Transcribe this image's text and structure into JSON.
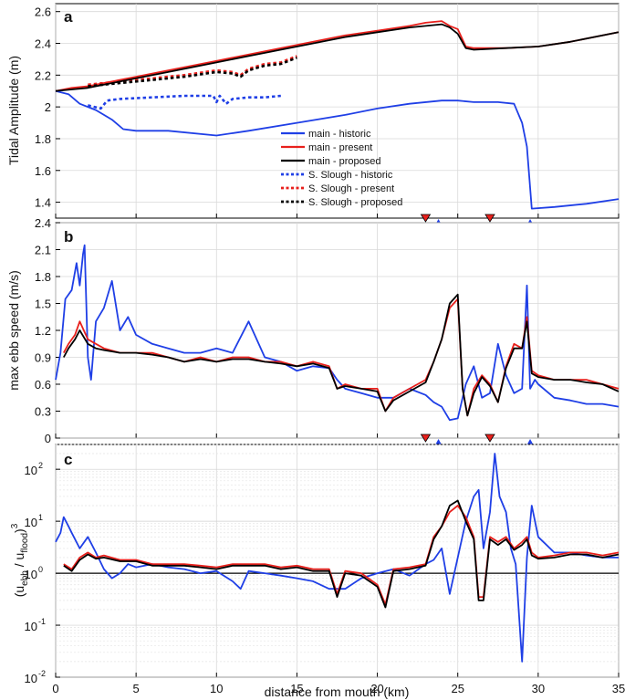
{
  "figure": {
    "xlabel": "distance from mouth (km)",
    "xticks": [
      0,
      5,
      10,
      15,
      20,
      25,
      30,
      35
    ],
    "markers": {
      "red_down": [
        23.0,
        27.0
      ],
      "blue_up": [
        23.8,
        29.5
      ],
      "red_color": "#e8201c",
      "blue_color": "#1f3fe6"
    }
  },
  "colors": {
    "historic": "#1f3fe6",
    "present": "#e8201c",
    "proposed": "#000000"
  },
  "chart_data": [
    {
      "panel": "a",
      "type": "line",
      "ylabel": "Tidal Amplitude (m)",
      "xlim": [
        0,
        35
      ],
      "ylim": [
        1.3,
        2.65
      ],
      "yticks": [
        "1.4",
        "1.6",
        "1.8",
        "2",
        "2.2",
        "2.4",
        "2.6"
      ],
      "grid": true,
      "legend_position": "center",
      "series": [
        {
          "name": "main - historic",
          "style": "solid",
          "color": "#1f3fe6",
          "x": [
            0,
            0.8,
            1.5,
            2.5,
            3.5,
            4.2,
            5,
            7,
            10,
            12,
            15,
            18,
            20,
            22,
            24,
            25,
            26,
            27.5,
            28.5,
            29,
            29.3,
            29.6,
            31,
            33,
            35
          ],
          "y": [
            2.1,
            2.08,
            2.02,
            1.98,
            1.92,
            1.86,
            1.85,
            1.85,
            1.82,
            1.85,
            1.9,
            1.95,
            1.99,
            2.02,
            2.04,
            2.04,
            2.03,
            2.03,
            2.02,
            1.9,
            1.75,
            1.36,
            1.37,
            1.39,
            1.42
          ]
        },
        {
          "name": "main - present",
          "style": "solid",
          "color": "#e8201c",
          "x": [
            0,
            1,
            2,
            3,
            5,
            7,
            10,
            12,
            15,
            18,
            20,
            22,
            23,
            24,
            24.5,
            25,
            25.5,
            26,
            28,
            30,
            32,
            35
          ],
          "y": [
            2.1,
            2.12,
            2.13,
            2.15,
            2.19,
            2.23,
            2.29,
            2.33,
            2.39,
            2.45,
            2.48,
            2.51,
            2.53,
            2.54,
            2.51,
            2.49,
            2.38,
            2.37,
            2.37,
            2.38,
            2.41,
            2.47
          ]
        },
        {
          "name": "main - proposed",
          "style": "solid",
          "color": "#000000",
          "x": [
            0,
            1,
            2,
            3,
            5,
            7,
            10,
            12,
            15,
            18,
            20,
            22,
            23,
            24,
            24.5,
            25,
            25.5,
            26,
            28,
            30,
            32,
            35
          ],
          "y": [
            2.1,
            2.11,
            2.12,
            2.14,
            2.18,
            2.22,
            2.28,
            2.32,
            2.38,
            2.44,
            2.47,
            2.5,
            2.51,
            2.52,
            2.5,
            2.46,
            2.37,
            2.36,
            2.37,
            2.38,
            2.41,
            2.47
          ]
        },
        {
          "name": "S. Slough - historic",
          "style": "dotted",
          "color": "#1f3fe6",
          "x": [
            2.0,
            2.8,
            3.2,
            4.0,
            6,
            8,
            9.8,
            10,
            10.2,
            10.6,
            11,
            12,
            13,
            14
          ],
          "y": [
            2.01,
            1.99,
            2.04,
            2.05,
            2.06,
            2.07,
            2.07,
            2.03,
            2.07,
            2.02,
            2.05,
            2.06,
            2.06,
            2.07
          ]
        },
        {
          "name": "S. Slough - present",
          "style": "dotted",
          "color": "#e8201c",
          "x": [
            2.0,
            3,
            4,
            6,
            8,
            10,
            11,
            11.5,
            12,
            13,
            14,
            15
          ],
          "y": [
            2.14,
            2.15,
            2.16,
            2.18,
            2.2,
            2.23,
            2.22,
            2.2,
            2.24,
            2.27,
            2.28,
            2.32
          ]
        },
        {
          "name": "S. Slough - proposed",
          "style": "dotted",
          "color": "#000000",
          "x": [
            2.0,
            3,
            4,
            6,
            8,
            10,
            11,
            11.5,
            12,
            13,
            14,
            15
          ],
          "y": [
            2.13,
            2.14,
            2.15,
            2.17,
            2.19,
            2.22,
            2.21,
            2.19,
            2.23,
            2.26,
            2.27,
            2.31
          ]
        }
      ]
    },
    {
      "panel": "b",
      "type": "line",
      "ylabel": "max ebb speed (m/s)",
      "xlim": [
        0,
        35
      ],
      "ylim": [
        0,
        2.4
      ],
      "yticks": [
        "0",
        "0.3",
        "0.6",
        "0.9",
        "1.2",
        "1.5",
        "1.8",
        "2.1",
        "2.4"
      ],
      "grid": true,
      "series": [
        {
          "name": "main - historic",
          "color": "#1f3fe6",
          "x": [
            0,
            0.3,
            0.6,
            1.0,
            1.3,
            1.5,
            1.7,
            1.8,
            2.0,
            2.2,
            2.5,
            3.0,
            3.5,
            4.0,
            4.5,
            5,
            6,
            7,
            8,
            9,
            10,
            11,
            12,
            13,
            14,
            15,
            16,
            17,
            17.5,
            18,
            19,
            20,
            21,
            22,
            23,
            23.5,
            24,
            24.5,
            25,
            25.5,
            26,
            26.5,
            27,
            27.5,
            28,
            28.5,
            29,
            29.3,
            29.5,
            29.8,
            30,
            31,
            32,
            33,
            34,
            35
          ],
          "y": [
            0.65,
            0.95,
            1.55,
            1.65,
            1.95,
            1.7,
            2.05,
            2.15,
            0.9,
            0.65,
            1.3,
            1.45,
            1.75,
            1.2,
            1.35,
            1.15,
            1.05,
            1.0,
            0.95,
            0.95,
            1.0,
            0.95,
            1.3,
            0.9,
            0.85,
            0.75,
            0.8,
            0.78,
            0.65,
            0.55,
            0.5,
            0.45,
            0.45,
            0.55,
            0.48,
            0.4,
            0.35,
            0.2,
            0.22,
            0.6,
            0.8,
            0.45,
            0.5,
            1.05,
            0.7,
            0.5,
            0.55,
            1.7,
            0.55,
            0.65,
            0.6,
            0.45,
            0.42,
            0.38,
            0.38,
            0.35
          ]
        },
        {
          "name": "main - present",
          "color": "#e8201c",
          "x": [
            0.5,
            0.8,
            1.2,
            1.5,
            2.0,
            2.5,
            3,
            4,
            5,
            6,
            7,
            8,
            9,
            10,
            11,
            12,
            13,
            14,
            15,
            16,
            17,
            17.5,
            18,
            19,
            20,
            20.5,
            21,
            22,
            23,
            23.5,
            24,
            24.5,
            25,
            25.3,
            25.6,
            26,
            26.5,
            27,
            27.5,
            28,
            28.5,
            29,
            29.3,
            29.6,
            30,
            31,
            32,
            33,
            34,
            35
          ],
          "y": [
            0.95,
            1.05,
            1.15,
            1.3,
            1.1,
            1.05,
            1.0,
            0.95,
            0.95,
            0.95,
            0.9,
            0.85,
            0.9,
            0.85,
            0.9,
            0.9,
            0.85,
            0.85,
            0.8,
            0.85,
            0.8,
            0.55,
            0.6,
            0.55,
            0.55,
            0.3,
            0.45,
            0.55,
            0.65,
            0.85,
            1.1,
            1.45,
            1.55,
            0.55,
            0.25,
            0.55,
            0.7,
            0.6,
            0.4,
            0.8,
            1.05,
            1.0,
            1.35,
            0.75,
            0.7,
            0.65,
            0.65,
            0.65,
            0.6,
            0.55
          ]
        },
        {
          "name": "main - proposed",
          "color": "#000000",
          "x": [
            0.5,
            0.8,
            1.2,
            1.5,
            2.0,
            2.5,
            3,
            4,
            5,
            6,
            7,
            8,
            9,
            10,
            11,
            12,
            13,
            14,
            15,
            16,
            17,
            17.5,
            18,
            19,
            20,
            20.5,
            21,
            22,
            23,
            23.5,
            24,
            24.5,
            25,
            25.3,
            25.6,
            26,
            26.5,
            27,
            27.5,
            28,
            28.5,
            29,
            29.3,
            29.6,
            30,
            31,
            32,
            33,
            34,
            35
          ],
          "y": [
            0.9,
            1.0,
            1.1,
            1.2,
            1.05,
            1.0,
            0.98,
            0.95,
            0.95,
            0.93,
            0.9,
            0.85,
            0.88,
            0.85,
            0.88,
            0.88,
            0.85,
            0.83,
            0.8,
            0.83,
            0.78,
            0.55,
            0.58,
            0.55,
            0.52,
            0.3,
            0.42,
            0.52,
            0.62,
            0.85,
            1.1,
            1.5,
            1.6,
            0.55,
            0.25,
            0.5,
            0.68,
            0.58,
            0.4,
            0.78,
            1.0,
            1.0,
            1.3,
            0.72,
            0.68,
            0.65,
            0.65,
            0.62,
            0.6,
            0.52
          ]
        }
      ]
    },
    {
      "panel": "c",
      "type": "line",
      "ylabel": "(u_ebb / u_flood)^3",
      "ylabel_parts": [
        "(u",
        "ebb",
        " / u",
        "flood",
        ")",
        "3"
      ],
      "xlim": [
        0,
        35
      ],
      "ylim": [
        0.01,
        300
      ],
      "yscale": "log",
      "yticks": [
        {
          "base": "10",
          "exp": "-2"
        },
        {
          "base": "10",
          "exp": "-1"
        },
        {
          "base": "10",
          "exp": "0"
        },
        {
          "base": "10",
          "exp": "1"
        },
        {
          "base": "10",
          "exp": "2"
        }
      ],
      "reference_line": 1,
      "grid": true,
      "series": [
        {
          "name": "main - historic",
          "color": "#1f3fe6",
          "x": [
            0,
            0.3,
            0.5,
            0.8,
            1.0,
            1.5,
            2.0,
            2.5,
            3,
            3.5,
            4,
            4.5,
            5,
            6,
            7,
            8,
            9,
            10,
            11,
            11.5,
            12,
            13,
            14,
            15,
            16,
            17,
            18,
            19,
            20,
            21,
            22,
            23,
            23.5,
            24,
            24.5,
            25,
            25.5,
            26,
            26.3,
            26.6,
            27,
            27.3,
            27.6,
            28,
            28.3,
            28.6,
            29,
            29.3,
            29.6,
            30,
            31,
            32,
            33,
            34,
            35
          ],
          "y": [
            4,
            6,
            12,
            8,
            6,
            3,
            5,
            2.5,
            1.2,
            0.8,
            1.0,
            1.5,
            1.3,
            1.5,
            1.3,
            1.2,
            1.0,
            1.1,
            0.7,
            0.5,
            1.1,
            1.0,
            0.9,
            0.8,
            0.7,
            0.5,
            0.5,
            0.8,
            1.0,
            1.2,
            0.9,
            1.5,
            1.8,
            3,
            0.4,
            2,
            10,
            30,
            40,
            3,
            15,
            200,
            30,
            15,
            3,
            1.5,
            0.02,
            2,
            20,
            5,
            2.5,
            2.5,
            2.2,
            2,
            2
          ]
        },
        {
          "name": "main - present",
          "color": "#e8201c",
          "x": [
            0.5,
            1,
            1.5,
            2,
            2.5,
            3,
            4,
            5,
            6,
            7,
            8,
            9,
            10,
            11,
            12,
            13,
            14,
            15,
            16,
            17,
            17.5,
            18,
            19,
            20,
            20.5,
            21,
            22,
            23,
            23.5,
            24,
            24.5,
            25,
            25.5,
            26,
            26.3,
            26.6,
            27,
            27.5,
            28,
            28.5,
            29,
            29.3,
            29.6,
            30,
            31,
            32,
            33,
            34,
            35
          ],
          "y": [
            1.5,
            1.2,
            2.0,
            2.5,
            2.0,
            2.2,
            1.8,
            1.8,
            1.5,
            1.5,
            1.5,
            1.4,
            1.3,
            1.5,
            1.5,
            1.5,
            1.3,
            1.4,
            1.2,
            1.2,
            0.4,
            1.1,
            1.0,
            0.6,
            0.25,
            1.2,
            1.3,
            1.5,
            5,
            8,
            15,
            20,
            12,
            5,
            0.35,
            0.35,
            5,
            4,
            5,
            3,
            4,
            5,
            2.5,
            2,
            2.2,
            2.5,
            2.5,
            2.2,
            2.5
          ]
        },
        {
          "name": "main - proposed",
          "color": "#000000",
          "x": [
            0.5,
            1,
            1.5,
            2,
            2.5,
            3,
            4,
            5,
            6,
            7,
            8,
            9,
            10,
            11,
            12,
            13,
            14,
            15,
            16,
            17,
            17.5,
            18,
            19,
            20,
            20.5,
            21,
            22,
            23,
            23.5,
            24,
            24.5,
            25,
            25.5,
            26,
            26.3,
            26.6,
            27,
            27.5,
            28,
            28.5,
            29,
            29.3,
            29.6,
            30,
            31,
            32,
            33,
            34,
            35
          ],
          "y": [
            1.4,
            1.1,
            1.8,
            2.3,
            1.9,
            2.0,
            1.7,
            1.7,
            1.4,
            1.4,
            1.4,
            1.3,
            1.2,
            1.4,
            1.4,
            1.4,
            1.2,
            1.3,
            1.1,
            1.1,
            0.35,
            1.0,
            0.9,
            0.55,
            0.22,
            1.1,
            1.2,
            1.4,
            4.5,
            8,
            20,
            25,
            10,
            4.5,
            0.3,
            0.3,
            4.5,
            3.5,
            4.5,
            2.8,
            3.5,
            4.5,
            2.2,
            1.9,
            2.0,
            2.3,
            2.3,
            2.0,
            2.3
          ]
        }
      ]
    }
  ]
}
